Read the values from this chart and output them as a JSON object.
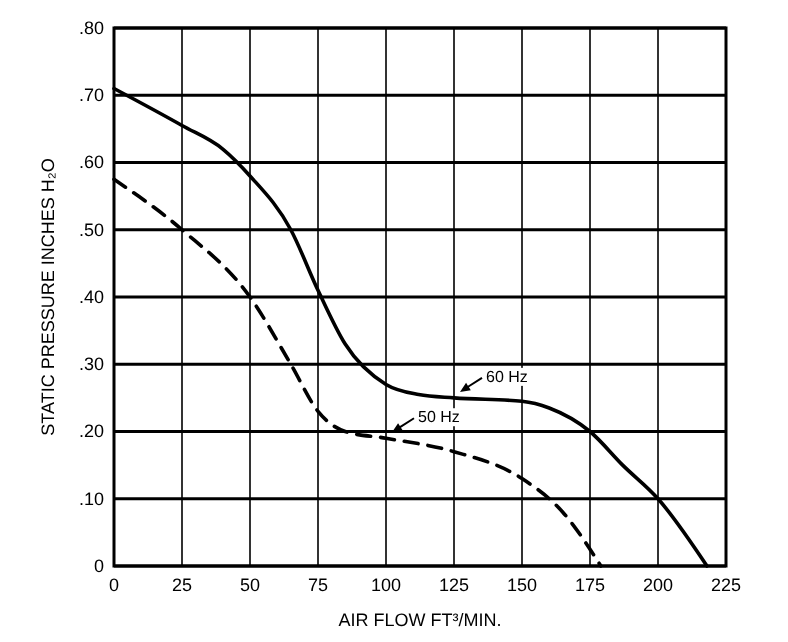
{
  "chart_data": {
    "type": "line",
    "xlabel": "AIR FLOW FT³/MIN.",
    "ylabel": "STATIC PRESSURE  INCHES H₂O",
    "xlim": [
      0,
      225
    ],
    "xticks": [
      0,
      25,
      50,
      75,
      100,
      125,
      150,
      175,
      200,
      225
    ],
    "ylim": [
      0,
      0.8
    ],
    "yticks": [
      {
        "value": 0,
        "label": "0"
      },
      {
        "value": 0.1,
        "label": ".10"
      },
      {
        "value": 0.2,
        "label": ".20"
      },
      {
        "value": 0.3,
        "label": ".30"
      },
      {
        "value": 0.4,
        "label": ".40"
      },
      {
        "value": 0.5,
        "label": ".50"
      },
      {
        "value": 0.6,
        "label": ".60"
      },
      {
        "value": 0.7,
        "label": ".70"
      },
      {
        "value": 0.8,
        "label": ".80"
      }
    ],
    "grid": true,
    "legend": "bottom",
    "marker": "none",
    "series": [
      {
        "name": "60 Hz",
        "color": "#000000",
        "line_style": "solid",
        "x": [
          0,
          25,
          40,
          50,
          65,
          75,
          85,
          100,
          112,
          125,
          150,
          160,
          175,
          187,
          200,
          218
        ],
        "values": [
          0.71,
          0.655,
          0.62,
          0.58,
          0.5,
          0.41,
          0.33,
          0.27,
          0.255,
          0.25,
          0.245,
          0.235,
          0.2,
          0.15,
          0.1,
          0
        ]
      },
      {
        "name": "50 Hz",
        "color": "#000000",
        "line_style": "dashed",
        "x": [
          0,
          25,
          50,
          65,
          75,
          85,
          100,
          125,
          150,
          165,
          179
        ],
        "values": [
          0.575,
          0.5,
          0.4,
          0.3,
          0.23,
          0.2,
          0.19,
          0.17,
          0.13,
          0.08,
          0
        ]
      }
    ]
  }
}
